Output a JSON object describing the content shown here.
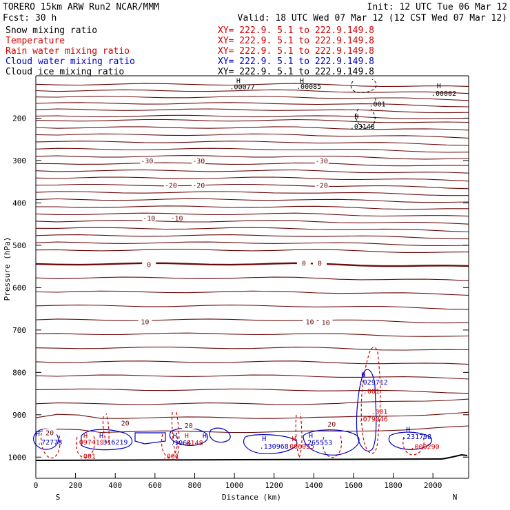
{
  "header": {
    "title": "TORERO  15km ARW   Run2    NCAR/MMM",
    "init": "Init: 12 UTC Tue 06 Mar 12",
    "fcst": "Fcst:   30 h",
    "valid": "Valid: 18 UTC Wed 07 Mar 12 (12 CST Wed 07 Mar 12)"
  },
  "legend": [
    {
      "name": "Snow mixing ratio",
      "xy": "XY= 222.9.  5.1 to 222.9.149.8",
      "color": "#000000"
    },
    {
      "name": "Temperature",
      "xy": "XY= 222.9.  5.1 to 222.9.149.8",
      "color": "#d00000"
    },
    {
      "name": "Rain water mixing ratio",
      "xy": "XY= 222.9.  5.1 to 222.9.149.8",
      "color": "#d00000"
    },
    {
      "name": "Cloud water mixing ratio",
      "xy": "XY= 222.9.  5.1 to 222.9.149.8",
      "color": "#0000c0"
    },
    {
      "name": "Cloud ice mixing ratio",
      "xy": "XY= 222.9.  5.1 to 222.9.149.8",
      "color": "#000000"
    }
  ],
  "chart_data": {
    "type": "cross-section contour",
    "xlabel": "Distance (km)",
    "ylabel": "Pressure (hPa)",
    "xlim": [
      0,
      2180
    ],
    "ylim": [
      1050,
      100
    ],
    "x_ticks": [
      "0",
      "200",
      "400",
      "600",
      "800",
      "1000",
      "1200",
      "1400",
      "1600",
      "1800",
      "2000"
    ],
    "x_tick_values": [
      0,
      200,
      400,
      600,
      800,
      1000,
      1200,
      1400,
      1600,
      1800,
      2000
    ],
    "y_ticks": [
      "200",
      "300",
      "400",
      "500",
      "600",
      "700",
      "800",
      "900",
      "1000"
    ],
    "y_tick_values": [
      200,
      300,
      400,
      500,
      600,
      700,
      800,
      900,
      1000
    ],
    "endpoints": {
      "left": "S",
      "right": "N"
    },
    "temperature_isotherm_levels": [
      -30,
      -20,
      -10,
      0,
      10,
      20
    ],
    "temperature_labels": [
      {
        "text": "-30",
        "x": 560,
        "p": 303
      },
      {
        "text": "-30",
        "x": 820,
        "p": 303
      },
      {
        "text": "-30",
        "x": 1440,
        "p": 303
      },
      {
        "text": "-20",
        "x": 680,
        "p": 361
      },
      {
        "text": "-20",
        "x": 820,
        "p": 361
      },
      {
        "text": "-20",
        "x": 1440,
        "p": 361
      },
      {
        "text": "-10",
        "x": 570,
        "p": 438
      },
      {
        "text": "-10",
        "x": 710,
        "p": 438
      },
      {
        "text": "0",
        "x": 570,
        "p": 548
      },
      {
        "text": "0",
        "x": 1350,
        "p": 545
      },
      {
        "text": "0",
        "x": 1430,
        "p": 545
      },
      {
        "text": "10",
        "x": 550,
        "p": 683
      },
      {
        "text": "10",
        "x": 1380,
        "p": 683
      },
      {
        "text": "10",
        "x": 1460,
        "p": 685
      },
      {
        "text": "20",
        "x": 450,
        "p": 922
      },
      {
        "text": "20",
        "x": 770,
        "p": 928
      },
      {
        "text": "20",
        "x": 1490,
        "p": 925
      },
      {
        "text": "20",
        "x": 70,
        "p": 945
      }
    ],
    "extrema_labels": [
      {
        "text": "H",
        "x": 1020,
        "p": 117,
        "color": "#000000"
      },
      {
        "text": ".00077",
        "x": 1040,
        "p": 132,
        "color": "#000000"
      },
      {
        "text": "H",
        "x": 1340,
        "p": 117,
        "color": "#000000"
      },
      {
        "text": ".00085",
        "x": 1375,
        "p": 131,
        "color": "#000000"
      },
      {
        "text": "H",
        "x": 2030,
        "p": 129,
        "color": "#000000"
      },
      {
        "text": ".00002",
        "x": 2055,
        "p": 147,
        "color": "#000000"
      },
      {
        "text": ".001",
        "x": 1720,
        "p": 172,
        "color": "#000000"
      },
      {
        "text": "H",
        "x": 1615,
        "p": 202,
        "color": "#000000"
      },
      {
        "text": ".03148",
        "x": 1645,
        "p": 225,
        "color": "#000000"
      },
      {
        "text": "H",
        "x": 1650,
        "p": 811,
        "color": "#0000c0"
      },
      {
        "text": ".029712",
        "x": 1700,
        "p": 829,
        "color": "#0000c0"
      },
      {
        "text": ".001",
        "x": 1690,
        "p": 850,
        "color": "#d00000"
      },
      {
        "text": ".001",
        "x": 1730,
        "p": 899,
        "color": "#d00000"
      },
      {
        "text": ".079046",
        "x": 1700,
        "p": 916,
        "color": "#d00000"
      },
      {
        "text": "H",
        "x": 1875,
        "p": 940,
        "color": "#0000c0"
      },
      {
        "text": ".231798",
        "x": 1920,
        "p": 957,
        "color": "#0000c0"
      },
      {
        "text": ".000290",
        "x": 1960,
        "p": 981,
        "color": "#d00000"
      },
      {
        "text": "H",
        "x": 1150,
        "p": 962,
        "color": "#0000c0"
      },
      {
        "text": ".130968",
        "x": 1200,
        "p": 980,
        "color": "#0000c0"
      },
      {
        "text": "H",
        "x": 1300,
        "p": 962,
        "color": "#d00000"
      },
      {
        "text": ".006055",
        "x": 1330,
        "p": 980,
        "color": "#d00000"
      },
      {
        "text": "H",
        "x": 1385,
        "p": 955,
        "color": "#0000c0"
      },
      {
        "text": ".265553",
        "x": 1420,
        "p": 971,
        "color": "#0000c0"
      },
      {
        "text": "H",
        "x": 700,
        "p": 955,
        "color": "#0000c0"
      },
      {
        "text": "H",
        "x": 760,
        "p": 955,
        "color": "#d00000"
      },
      {
        "text": ".1964",
        "x": 730,
        "p": 972,
        "color": "#0000c0"
      },
      {
        "text": ".0148",
        "x": 790,
        "p": 972,
        "color": "#d00000"
      },
      {
        "text": "H",
        "x": 250,
        "p": 955,
        "color": "#d00000"
      },
      {
        "text": ".097419",
        "x": 270,
        "p": 970,
        "color": "#d00000"
      },
      {
        "text": ".316219",
        "x": 390,
        "p": 970,
        "color": "#0000c0"
      },
      {
        "text": ".72778",
        "x": 70,
        "p": 970,
        "color": "#0000c0"
      },
      {
        "text": ".001",
        "x": 260,
        "p": 1004,
        "color": "#d00000"
      },
      {
        "text": ".001",
        "x": 680,
        "p": 1004,
        "color": "#d00000"
      },
      {
        "text": "H",
        "x": 330,
        "p": 955,
        "color": "#0000c0"
      },
      {
        "text": "H",
        "x": 10,
        "p": 950,
        "color": "#0000c0"
      },
      {
        "text": "H",
        "x": 850,
        "p": 955,
        "color": "#0000c0"
      }
    ]
  }
}
